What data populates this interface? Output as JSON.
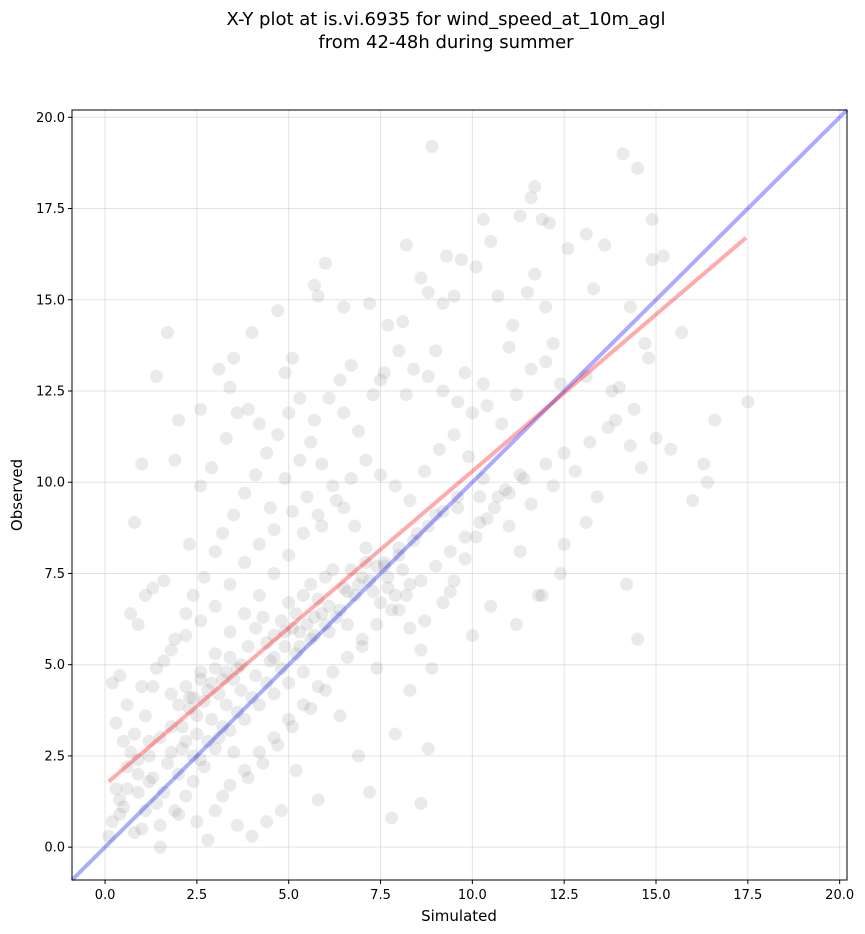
{
  "chart_data": {
    "type": "scatter",
    "title_lines": [
      "X-Y plot at is.vi.6935 for wind_speed_at_10m_agl",
      "from 42-48h during summer"
    ],
    "xlabel": "Simulated",
    "ylabel": "Observed",
    "xlim": [
      -0.9,
      20.2
    ],
    "ylim": [
      -0.9,
      20.2
    ],
    "x_ticks": [
      "0.0",
      "2.5",
      "5.0",
      "7.5",
      "10.0",
      "12.5",
      "15.0",
      "17.5",
      "20.0"
    ],
    "y_ticks": [
      "0.0",
      "2.5",
      "5.0",
      "7.5",
      "10.0",
      "12.5",
      "15.0",
      "17.5",
      "20.0"
    ],
    "grid": true,
    "colors": {
      "points": "#808080",
      "fit_line": "#ff0000",
      "one_to_one": "#0000ff"
    },
    "fit_line": {
      "name": "",
      "x": [
        0.1,
        17.45
      ],
      "y": [
        1.8,
        16.7
      ]
    },
    "one_to_one_line": {
      "name": "",
      "x": [
        -0.9,
        20.2
      ],
      "y": [
        -0.9,
        20.2
      ]
    },
    "points": [
      [
        8.9,
        19.2
      ],
      [
        14.1,
        19.0
      ],
      [
        14.5,
        18.6
      ],
      [
        11.7,
        18.1
      ],
      [
        11.6,
        17.8
      ],
      [
        13.1,
        16.8
      ],
      [
        14.9,
        17.2
      ],
      [
        12.6,
        16.4
      ],
      [
        15.2,
        16.2
      ],
      [
        14.9,
        16.1
      ],
      [
        10.3,
        17.2
      ],
      [
        11.3,
        17.3
      ],
      [
        11.9,
        17.2
      ],
      [
        12.1,
        17.1
      ],
      [
        13.6,
        16.5
      ],
      [
        10.5,
        16.6
      ],
      [
        9.3,
        16.2
      ],
      [
        9.7,
        16.1
      ],
      [
        8.2,
        16.5
      ],
      [
        6.0,
        16.0
      ],
      [
        5.7,
        15.4
      ],
      [
        5.8,
        15.1
      ],
      [
        6.5,
        14.8
      ],
      [
        7.2,
        14.9
      ],
      [
        7.7,
        14.3
      ],
      [
        8.1,
        14.4
      ],
      [
        8.6,
        15.6
      ],
      [
        8.8,
        15.2
      ],
      [
        9.2,
        14.9
      ],
      [
        9.5,
        15.1
      ],
      [
        10.1,
        15.9
      ],
      [
        10.7,
        15.1
      ],
      [
        11.1,
        14.3
      ],
      [
        11.5,
        15.2
      ],
      [
        11.7,
        15.7
      ],
      [
        12.0,
        14.8
      ],
      [
        13.3,
        15.3
      ],
      [
        14.3,
        14.8
      ],
      [
        14.7,
        13.8
      ],
      [
        15.7,
        14.1
      ],
      [
        4.7,
        14.7
      ],
      [
        4.0,
        14.1
      ],
      [
        1.7,
        14.1
      ],
      [
        3.5,
        13.4
      ],
      [
        3.1,
        13.1
      ],
      [
        1.4,
        12.9
      ],
      [
        3.4,
        12.6
      ],
      [
        3.9,
        12.0
      ],
      [
        2.6,
        12.0
      ],
      [
        2.0,
        11.7
      ],
      [
        4.9,
        13.0
      ],
      [
        5.1,
        13.4
      ],
      [
        6.4,
        12.8
      ],
      [
        6.7,
        13.2
      ],
      [
        7.5,
        12.8
      ],
      [
        8.2,
        12.4
      ],
      [
        9.0,
        13.6
      ],
      [
        9.8,
        13.0
      ],
      [
        10.3,
        12.7
      ],
      [
        11.0,
        13.7
      ],
      [
        12.2,
        13.8
      ],
      [
        13.1,
        12.9
      ],
      [
        13.8,
        12.5
      ],
      [
        14.8,
        13.4
      ],
      [
        14.4,
        12.0
      ],
      [
        13.9,
        11.7
      ],
      [
        13.2,
        11.1
      ],
      [
        12.5,
        10.8
      ],
      [
        12.0,
        10.5
      ],
      [
        11.3,
        10.2
      ],
      [
        10.9,
        9.8
      ],
      [
        10.2,
        9.6
      ],
      [
        9.6,
        9.3
      ],
      [
        9.0,
        9.1
      ],
      [
        8.5,
        8.6
      ],
      [
        8.0,
        8.2
      ],
      [
        7.6,
        7.8
      ],
      [
        7.0,
        7.4
      ],
      [
        6.6,
        7.0
      ],
      [
        6.1,
        6.6
      ],
      [
        5.7,
        6.3
      ],
      [
        5.3,
        5.9
      ],
      [
        4.9,
        5.5
      ],
      [
        4.5,
        5.1
      ],
      [
        4.1,
        4.7
      ],
      [
        3.7,
        4.3
      ],
      [
        3.3,
        3.9
      ],
      [
        2.9,
        3.5
      ],
      [
        2.5,
        3.1
      ],
      [
        2.1,
        2.7
      ],
      [
        1.7,
        2.3
      ],
      [
        1.3,
        1.9
      ],
      [
        0.9,
        1.5
      ],
      [
        0.5,
        1.1
      ],
      [
        0.2,
        0.7
      ],
      [
        0.1,
        0.3
      ],
      [
        0.3,
        1.6
      ],
      [
        0.6,
        2.2
      ],
      [
        0.8,
        3.1
      ],
      [
        1.1,
        3.6
      ],
      [
        1.3,
        4.4
      ],
      [
        1.6,
        5.1
      ],
      [
        1.9,
        5.7
      ],
      [
        2.2,
        6.4
      ],
      [
        2.4,
        6.9
      ],
      [
        2.7,
        7.4
      ],
      [
        3.0,
        8.1
      ],
      [
        3.2,
        8.6
      ],
      [
        3.5,
        9.1
      ],
      [
        3.8,
        9.7
      ],
      [
        4.1,
        10.2
      ],
      [
        4.4,
        10.8
      ],
      [
        4.7,
        11.3
      ],
      [
        5.0,
        11.9
      ],
      [
        5.3,
        12.3
      ],
      [
        5.6,
        11.1
      ],
      [
        5.9,
        10.5
      ],
      [
        6.2,
        9.9
      ],
      [
        6.5,
        9.3
      ],
      [
        6.8,
        8.8
      ],
      [
        7.1,
        8.2
      ],
      [
        7.4,
        7.7
      ],
      [
        7.7,
        7.1
      ],
      [
        8.0,
        6.5
      ],
      [
        8.3,
        6.0
      ],
      [
        8.6,
        5.4
      ],
      [
        8.9,
        4.9
      ],
      [
        9.2,
        6.7
      ],
      [
        9.5,
        7.3
      ],
      [
        9.8,
        7.9
      ],
      [
        10.1,
        8.5
      ],
      [
        10.4,
        9.0
      ],
      [
        10.7,
        9.6
      ],
      [
        11.0,
        8.8
      ],
      [
        11.3,
        8.1
      ],
      [
        11.6,
        9.4
      ],
      [
        11.9,
        6.9
      ],
      [
        12.2,
        9.9
      ],
      [
        12.5,
        8.3
      ],
      [
        12.8,
        10.3
      ],
      [
        13.1,
        8.9
      ],
      [
        13.4,
        9.6
      ],
      [
        13.7,
        11.5
      ],
      [
        14.0,
        12.6
      ],
      [
        14.3,
        11.0
      ],
      [
        14.6,
        10.4
      ],
      [
        15.0,
        11.2
      ],
      [
        15.4,
        10.9
      ],
      [
        16.0,
        9.5
      ],
      [
        16.4,
        10.0
      ],
      [
        16.6,
        11.7
      ],
      [
        17.5,
        12.2
      ],
      [
        16.3,
        10.5
      ],
      [
        14.5,
        5.7
      ],
      [
        14.2,
        7.2
      ],
      [
        12.4,
        7.5
      ],
      [
        11.8,
        6.9
      ],
      [
        10.5,
        6.6
      ],
      [
        10.0,
        5.8
      ],
      [
        11.2,
        6.1
      ],
      [
        9.4,
        7.0
      ],
      [
        8.7,
        6.2
      ],
      [
        8.3,
        4.3
      ],
      [
        7.9,
        3.1
      ],
      [
        8.8,
        2.7
      ],
      [
        8.6,
        1.2
      ],
      [
        7.8,
        0.8
      ],
      [
        7.2,
        1.5
      ],
      [
        6.9,
        2.5
      ],
      [
        6.4,
        3.6
      ],
      [
        5.8,
        1.3
      ],
      [
        5.2,
        2.1
      ],
      [
        4.8,
        1.0
      ],
      [
        4.4,
        0.7
      ],
      [
        4.0,
        0.3
      ],
      [
        3.6,
        0.6
      ],
      [
        3.2,
        1.4
      ],
      [
        2.8,
        0.2
      ],
      [
        2.4,
        1.8
      ],
      [
        2.0,
        0.9
      ],
      [
        1.5,
        0.0
      ],
      [
        1.0,
        0.5
      ],
      [
        0.4,
        0.9
      ],
      [
        0.7,
        2.6
      ],
      [
        1.2,
        2.9
      ],
      [
        1.8,
        3.3
      ],
      [
        2.3,
        4.1
      ],
      [
        2.6,
        4.8
      ],
      [
        3.0,
        5.3
      ],
      [
        3.4,
        5.9
      ],
      [
        3.8,
        6.4
      ],
      [
        4.2,
        6.9
      ],
      [
        4.6,
        7.5
      ],
      [
        5.0,
        8.0
      ],
      [
        5.4,
        8.6
      ],
      [
        5.8,
        9.1
      ],
      [
        6.2,
        7.6
      ],
      [
        6.6,
        6.1
      ],
      [
        7.0,
        5.5
      ],
      [
        7.4,
        4.9
      ],
      [
        6.0,
        4.3
      ],
      [
        5.6,
        3.8
      ],
      [
        5.1,
        3.3
      ],
      [
        4.7,
        2.8
      ],
      [
        4.3,
        2.3
      ],
      [
        3.9,
        1.9
      ],
      [
        3.5,
        2.6
      ],
      [
        3.1,
        3.0
      ],
      [
        2.7,
        2.2
      ],
      [
        2.2,
        1.4
      ],
      [
        1.9,
        1.0
      ],
      [
        1.4,
        1.2
      ],
      [
        0.8,
        0.4
      ],
      [
        0.2,
        4.5
      ],
      [
        0.4,
        4.7
      ],
      [
        0.7,
        6.4
      ],
      [
        0.9,
        6.1
      ],
      [
        1.1,
        6.9
      ],
      [
        1.3,
        7.1
      ],
      [
        1.6,
        7.3
      ],
      [
        0.8,
        8.9
      ],
      [
        1.0,
        10.5
      ],
      [
        1.9,
        10.6
      ],
      [
        2.3,
        8.3
      ],
      [
        2.6,
        9.9
      ],
      [
        2.9,
        10.4
      ],
      [
        3.3,
        11.2
      ],
      [
        3.6,
        11.9
      ],
      [
        4.2,
        11.6
      ],
      [
        4.5,
        9.3
      ],
      [
        4.9,
        10.1
      ],
      [
        5.3,
        10.6
      ],
      [
        5.7,
        11.7
      ],
      [
        6.1,
        12.3
      ],
      [
        6.5,
        11.9
      ],
      [
        6.9,
        11.4
      ],
      [
        7.3,
        12.4
      ],
      [
        7.6,
        13.0
      ],
      [
        8.0,
        13.6
      ],
      [
        8.4,
        13.1
      ],
      [
        8.8,
        12.9
      ],
      [
        9.2,
        12.5
      ],
      [
        9.6,
        12.2
      ],
      [
        10.0,
        11.9
      ],
      [
        10.4,
        12.1
      ],
      [
        10.8,
        11.6
      ],
      [
        11.2,
        12.4
      ],
      [
        11.6,
        13.1
      ],
      [
        12.0,
        13.3
      ],
      [
        12.4,
        12.7
      ],
      [
        7.1,
        10.6
      ],
      [
        7.5,
        10.2
      ],
      [
        7.9,
        9.9
      ],
      [
        8.3,
        9.5
      ],
      [
        8.7,
        10.3
      ],
      [
        9.1,
        10.9
      ],
      [
        9.5,
        11.3
      ],
      [
        9.9,
        10.7
      ],
      [
        10.3,
        10.1
      ],
      [
        6.7,
        10.1
      ],
      [
        6.3,
        9.5
      ],
      [
        5.9,
        8.8
      ],
      [
        5.5,
        9.6
      ],
      [
        5.1,
        9.2
      ],
      [
        4.6,
        8.7
      ],
      [
        4.2,
        8.3
      ],
      [
        3.8,
        7.8
      ],
      [
        3.4,
        7.2
      ],
      [
        3.0,
        6.6
      ],
      [
        2.6,
        6.2
      ],
      [
        2.2,
        5.8
      ],
      [
        1.8,
        5.4
      ],
      [
        1.4,
        4.9
      ],
      [
        1.0,
        4.4
      ],
      [
        0.6,
        3.9
      ],
      [
        0.3,
        3.4
      ],
      [
        0.5,
        2.9
      ],
      [
        0.9,
        2.4
      ],
      [
        1.2,
        1.8
      ],
      [
        1.6,
        1.5
      ],
      [
        2.0,
        2.0
      ],
      [
        2.4,
        2.5
      ],
      [
        2.8,
        2.9
      ],
      [
        3.2,
        3.3
      ],
      [
        3.6,
        3.7
      ],
      [
        4.0,
        4.1
      ],
      [
        4.4,
        4.5
      ],
      [
        4.8,
        4.9
      ],
      [
        5.2,
        5.3
      ],
      [
        5.6,
        5.7
      ],
      [
        6.0,
        6.1
      ],
      [
        6.4,
        6.5
      ],
      [
        6.8,
        6.9
      ],
      [
        7.2,
        7.3
      ],
      [
        7.6,
        7.7
      ],
      [
        8.0,
        8.0
      ],
      [
        8.4,
        8.4
      ],
      [
        8.8,
        8.8
      ],
      [
        9.2,
        9.2
      ],
      [
        9.6,
        9.6
      ],
      [
        4.1,
        6.0
      ],
      [
        4.3,
        6.3
      ],
      [
        4.6,
        5.8
      ],
      [
        4.8,
        6.2
      ],
      [
        5.0,
        6.7
      ],
      [
        5.2,
        6.4
      ],
      [
        5.4,
        6.9
      ],
      [
        5.6,
        7.2
      ],
      [
        5.8,
        6.8
      ],
      [
        6.0,
        7.4
      ],
      [
        3.9,
        5.5
      ],
      [
        3.7,
        5.0
      ],
      [
        3.5,
        4.6
      ],
      [
        3.3,
        4.8
      ],
      [
        3.1,
        4.2
      ],
      [
        2.9,
        4.5
      ],
      [
        2.7,
        4.0
      ],
      [
        2.5,
        3.6
      ],
      [
        2.3,
        3.8
      ],
      [
        2.1,
        3.3
      ],
      [
        4.4,
        5.6
      ],
      [
        4.6,
        5.2
      ],
      [
        4.9,
        5.9
      ],
      [
        5.1,
        6.0
      ],
      [
        5.3,
        5.5
      ],
      [
        5.5,
        6.1
      ],
      [
        5.7,
        5.8
      ],
      [
        5.9,
        6.4
      ],
      [
        6.1,
        5.9
      ],
      [
        6.3,
        6.3
      ],
      [
        3.6,
        4.9
      ],
      [
        3.4,
        5.2
      ],
      [
        3.2,
        4.6
      ],
      [
        3.0,
        4.9
      ],
      [
        2.8,
        4.3
      ],
      [
        2.6,
        4.6
      ],
      [
        2.4,
        4.1
      ],
      [
        2.2,
        4.4
      ],
      [
        2.0,
        3.9
      ],
      [
        1.8,
        4.2
      ],
      [
        6.5,
        7.1
      ],
      [
        6.7,
        7.6
      ],
      [
        6.9,
        7.2
      ],
      [
        7.1,
        7.8
      ],
      [
        7.3,
        7.0
      ],
      [
        7.5,
        6.7
      ],
      [
        7.7,
        7.4
      ],
      [
        7.9,
        6.9
      ],
      [
        8.1,
        7.6
      ],
      [
        8.3,
        7.2
      ],
      [
        5.4,
        4.8
      ],
      [
        5.0,
        4.5
      ],
      [
        4.6,
        4.2
      ],
      [
        4.2,
        3.9
      ],
      [
        3.8,
        3.5
      ],
      [
        3.4,
        3.2
      ],
      [
        3.0,
        2.7
      ],
      [
        2.6,
        2.4
      ],
      [
        2.2,
        2.9
      ],
      [
        1.8,
        2.6
      ],
      [
        1.5,
        3.0
      ],
      [
        1.2,
        2.5
      ],
      [
        0.9,
        2.0
      ],
      [
        0.6,
        1.6
      ],
      [
        0.4,
        1.3
      ],
      [
        1.1,
        1.0
      ],
      [
        1.5,
        0.6
      ],
      [
        2.5,
        0.7
      ],
      [
        3.0,
        1.0
      ],
      [
        3.4,
        1.7
      ],
      [
        3.8,
        2.1
      ],
      [
        4.2,
        2.6
      ],
      [
        4.6,
        3.0
      ],
      [
        5.0,
        3.5
      ],
      [
        5.4,
        3.9
      ],
      [
        5.8,
        4.4
      ],
      [
        6.2,
        4.8
      ],
      [
        6.6,
        5.2
      ],
      [
        7.0,
        5.7
      ],
      [
        7.4,
        6.1
      ],
      [
        7.8,
        6.5
      ],
      [
        8.2,
        6.9
      ],
      [
        8.6,
        7.3
      ],
      [
        9.0,
        7.7
      ],
      [
        9.4,
        8.1
      ],
      [
        9.8,
        8.5
      ],
      [
        10.2,
        8.9
      ],
      [
        10.6,
        9.3
      ],
      [
        11.0,
        9.7
      ],
      [
        11.4,
        10.1
      ]
    ]
  }
}
